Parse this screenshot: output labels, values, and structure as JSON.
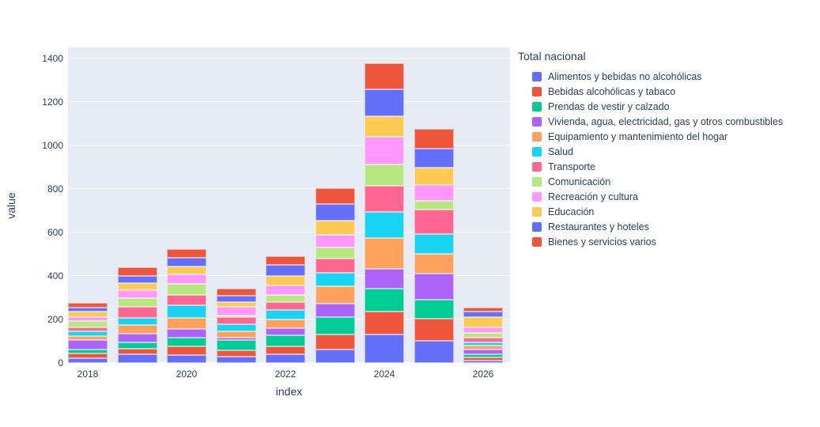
{
  "chart_data": {
    "type": "bar",
    "stacked": true,
    "legend_title": "Total nacional",
    "xlabel": "index",
    "ylabel": "value",
    "x": [
      2018,
      2019,
      2020,
      2021,
      2022,
      2023,
      2024,
      2025,
      2026
    ],
    "x_tick_labels": [
      "2018",
      "2020",
      "2022",
      "2024",
      "2026"
    ],
    "x_ticks_at": [
      2018,
      2020,
      2022,
      2024,
      2026
    ],
    "y_ticks": [
      0,
      200,
      400,
      600,
      800,
      1000,
      1200,
      1400
    ],
    "ylim": [
      0,
      1450
    ],
    "grid": true,
    "legend_position": "right",
    "plot_bgcolor": "#e5ecf6",
    "paper_bgcolor": "#ffffff",
    "grid_color": "#ffffff",
    "text_color": "#2a3f5f",
    "series": [
      {
        "name": "Alimentos y bebidas no alcohólicas",
        "color": "#636efa",
        "values": [
          23,
          40,
          36,
          28,
          39,
          63,
          132,
          102,
          11
        ]
      },
      {
        "name": "Bebidas alcohólicas y tabaco",
        "color": "#ef553b",
        "values": [
          21,
          24,
          40,
          32,
          39,
          67,
          105,
          100,
          15
        ]
      },
      {
        "name": "Prendas de vestir y calzado",
        "color": "#00cc96",
        "values": [
          17,
          31,
          40,
          46,
          49,
          82,
          105,
          89,
          15
        ]
      },
      {
        "name": "Vivienda, agua, electricidad, gas y otros combustibles",
        "color": "#ab63fa",
        "values": [
          44,
          39,
          39,
          10,
          34,
          62,
          89,
          118,
          22
        ]
      },
      {
        "name": "Equipamiento y mantenimiento del hogar",
        "color": "#ffa15a",
        "values": [
          18,
          39,
          52,
          31,
          39,
          79,
          144,
          93,
          17
        ]
      },
      {
        "name": "Salud",
        "color": "#19d3f3",
        "values": [
          22,
          33,
          57,
          31,
          44,
          63,
          119,
          89,
          15
        ]
      },
      {
        "name": "Transporte",
        "color": "#ff6692",
        "values": [
          18,
          53,
          49,
          32,
          36,
          64,
          119,
          113,
          22
        ]
      },
      {
        "name": "Comunicación",
        "color": "#b6e880",
        "values": [
          29,
          40,
          49,
          8,
          34,
          52,
          100,
          40,
          22
        ]
      },
      {
        "name": "Recreación y cultura",
        "color": "#ff97ff",
        "values": [
          19,
          36,
          45,
          40,
          43,
          57,
          125,
          75,
          24
        ]
      },
      {
        "name": "Educación",
        "color": "#fecb52",
        "values": [
          27,
          31,
          37,
          22,
          42,
          67,
          96,
          80,
          49
        ]
      },
      {
        "name": "Restaurantes y hoteles",
        "color": "#636efa",
        "values": [
          18,
          36,
          39,
          30,
          52,
          76,
          124,
          85,
          24
        ]
      },
      {
        "name": "Bienes y servicios varios",
        "color": "#ef553b",
        "values": [
          22,
          38,
          41,
          31,
          40,
          73,
          121,
          93,
          20
        ]
      }
    ]
  }
}
